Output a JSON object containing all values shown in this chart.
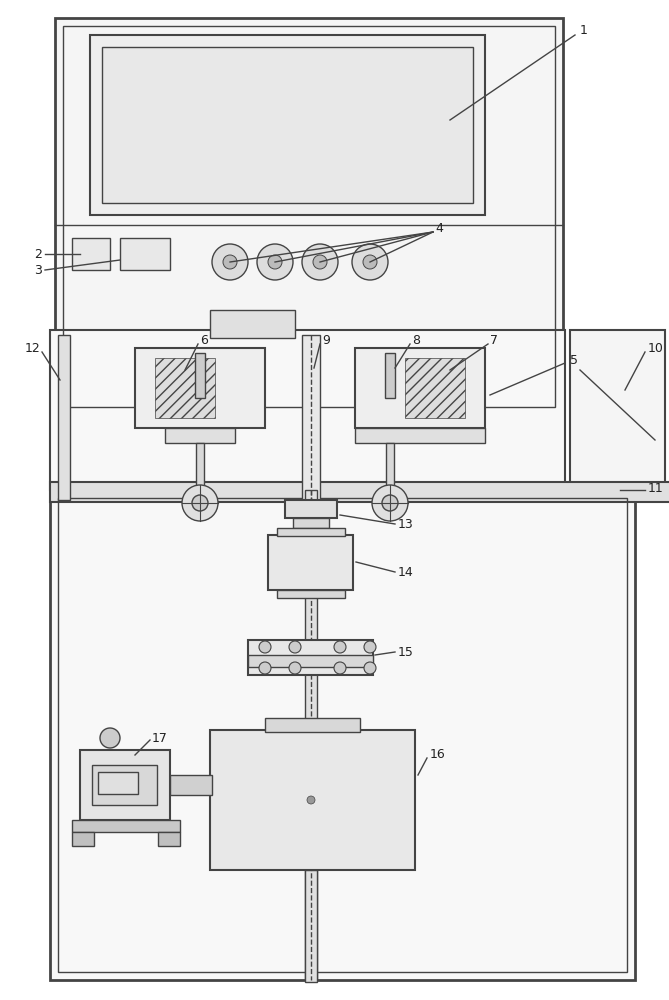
{
  "bg_color": "#ffffff",
  "lc": "#444444",
  "figsize": [
    6.69,
    10.0
  ],
  "dpi": 100
}
